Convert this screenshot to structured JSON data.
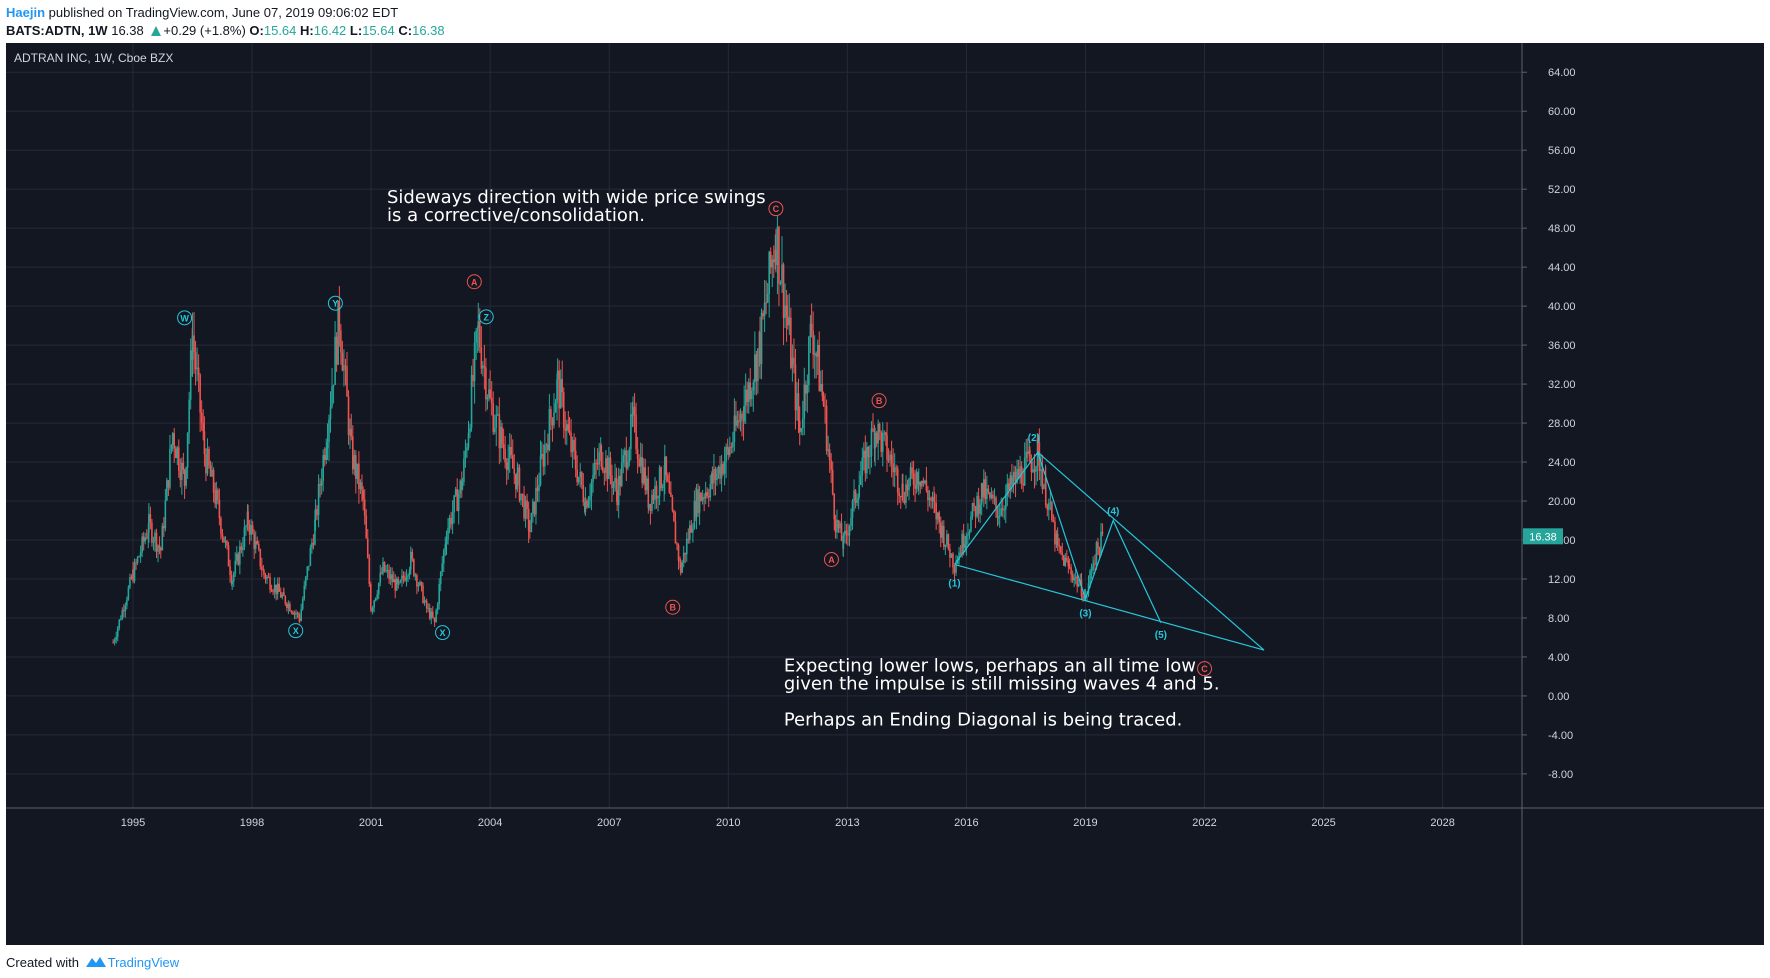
{
  "header": {
    "author": "Haejin",
    "published": " published on TradingView.com, June 07, 2019 09:06:02 EDT",
    "symbol": "BATS:ADTN, 1W",
    "price": "16.38",
    "change": "+0.29 (+1.8%)",
    "o_label": "O:",
    "o_value": "15.64",
    "h_label": "H:",
    "h_value": "16.42",
    "l_label": "L:",
    "l_value": "15.64",
    "c_label": "C:",
    "c_value": "16.38"
  },
  "footer": {
    "created": "Created with",
    "brand": "TradingView"
  },
  "colors": {
    "background": "#131722",
    "grid": "#252a38",
    "axis_text": "#d1d4dc",
    "candle_up": "#26a69a",
    "candle_down": "#ef5350",
    "wave_cyan": "#26c6da",
    "wave_red": "#ef5350",
    "price_label_bg": "#26a69a"
  },
  "chart_data": {
    "type": "candlestick",
    "title": "ADTRAN INC, 1W, Cboe BZX",
    "x_range": [
      1991.8,
      2030.0
    ],
    "y_range": [
      -11.5,
      67.0
    ],
    "x_ticks": [
      "1995",
      "1998",
      "2001",
      "2004",
      "2007",
      "2010",
      "2013",
      "2016",
      "2019",
      "2022",
      "2025",
      "2028"
    ],
    "x_tick_values": [
      1995,
      1998,
      2001,
      2004,
      2007,
      2010,
      2013,
      2016,
      2019,
      2022,
      2025,
      2028
    ],
    "y_ticks": [
      "64.00",
      "60.00",
      "56.00",
      "52.00",
      "48.00",
      "44.00",
      "40.00",
      "36.00",
      "32.00",
      "28.00",
      "24.00",
      "20.00",
      "16.00",
      "12.00",
      "8.00",
      "4.00",
      "0.00",
      "-4.00",
      "-8.00"
    ],
    "y_tick_values": [
      64,
      60,
      56,
      52,
      48,
      44,
      40,
      36,
      32,
      28,
      24,
      20,
      16,
      12,
      8,
      4,
      0,
      -4,
      -8
    ],
    "last_price": "16.38",
    "last_price_value": 16.38,
    "price_path": [
      [
        1994.5,
        5.5
      ],
      [
        1995.0,
        12.5
      ],
      [
        1995.4,
        17.5
      ],
      [
        1995.7,
        15.0
      ],
      [
        1996.0,
        27.0
      ],
      [
        1996.3,
        22.0
      ],
      [
        1996.5,
        37.0
      ],
      [
        1996.8,
        25.0
      ],
      [
        1997.1,
        20.0
      ],
      [
        1997.5,
        12.0
      ],
      [
        1997.9,
        18.0
      ],
      [
        1998.3,
        12.5
      ],
      [
        1998.8,
        10.0
      ],
      [
        1999.2,
        8.0
      ],
      [
        1999.6,
        18.0
      ],
      [
        1999.9,
        28.0
      ],
      [
        2000.2,
        39.0
      ],
      [
        2000.5,
        25.0
      ],
      [
        2000.8,
        20.0
      ],
      [
        2001.0,
        9.0
      ],
      [
        2001.3,
        13.0
      ],
      [
        2001.7,
        11.0
      ],
      [
        2002.0,
        14.0
      ],
      [
        2002.4,
        9.0
      ],
      [
        2002.6,
        7.5
      ],
      [
        2002.9,
        17.0
      ],
      [
        2003.3,
        22.0
      ],
      [
        2003.7,
        37.5
      ],
      [
        2004.0,
        30.0
      ],
      [
        2004.3,
        26.0
      ],
      [
        2004.7,
        22.0
      ],
      [
        2005.0,
        17.0
      ],
      [
        2005.3,
        24.0
      ],
      [
        2005.7,
        32.0
      ],
      [
        2006.0,
        26.0
      ],
      [
        2006.4,
        20.0
      ],
      [
        2006.8,
        25.0
      ],
      [
        2007.2,
        21.0
      ],
      [
        2007.6,
        28.0
      ],
      [
        2008.0,
        20.0
      ],
      [
        2008.4,
        23.0
      ],
      [
        2008.8,
        13.0
      ],
      [
        2009.2,
        20.0
      ],
      [
        2009.6,
        22.0
      ],
      [
        2010.0,
        25.0
      ],
      [
        2010.4,
        30.0
      ],
      [
        2010.8,
        36.0
      ],
      [
        2011.2,
        47.5
      ],
      [
        2011.5,
        38.0
      ],
      [
        2011.8,
        27.0
      ],
      [
        2012.1,
        38.0
      ],
      [
        2012.4,
        30.0
      ],
      [
        2012.7,
        18.0
      ],
      [
        2012.9,
        15.5
      ],
      [
        2013.3,
        22.0
      ],
      [
        2013.7,
        27.5
      ],
      [
        2014.0,
        25.0
      ],
      [
        2014.4,
        21.0
      ],
      [
        2014.8,
        23.0
      ],
      [
        2015.2,
        19.0
      ],
      [
        2015.7,
        13.5
      ],
      [
        2016.0,
        17.0
      ],
      [
        2016.4,
        21.0
      ],
      [
        2016.8,
        19.0
      ],
      [
        2017.2,
        22.0
      ],
      [
        2017.6,
        24.0
      ],
      [
        2017.8,
        25.0
      ],
      [
        2018.0,
        21.0
      ],
      [
        2018.3,
        15.0
      ],
      [
        2018.6,
        13.0
      ],
      [
        2018.9,
        11.0
      ],
      [
        2019.0,
        10.0
      ],
      [
        2019.2,
        14.0
      ],
      [
        2019.45,
        16.38
      ]
    ],
    "wave_labels": [
      {
        "text": "W",
        "x": 1996.3,
        "y": 38.8,
        "color": "cyan",
        "circled": true
      },
      {
        "text": "X",
        "x": 1999.1,
        "y": 6.7,
        "color": "cyan",
        "circled": true
      },
      {
        "text": "Y",
        "x": 2000.1,
        "y": 40.3,
        "color": "cyan",
        "circled": true
      },
      {
        "text": "X",
        "x": 2002.8,
        "y": 6.5,
        "color": "cyan",
        "circled": true
      },
      {
        "text": "A",
        "x": 2003.6,
        "y": 42.5,
        "color": "red",
        "circled": true
      },
      {
        "text": "Z",
        "x": 2003.9,
        "y": 38.9,
        "color": "cyan",
        "circled": true
      },
      {
        "text": "B",
        "x": 2008.6,
        "y": 9.1,
        "color": "red",
        "circled": true
      },
      {
        "text": "C",
        "x": 2011.2,
        "y": 50.0,
        "color": "red",
        "circled": true
      },
      {
        "text": "A",
        "x": 2012.6,
        "y": 14.0,
        "color": "red",
        "circled": true
      },
      {
        "text": "B",
        "x": 2013.8,
        "y": 30.3,
        "color": "red",
        "circled": true
      },
      {
        "text": "(1)",
        "x": 2015.7,
        "y": 11.6,
        "color": "cyan",
        "circled": false
      },
      {
        "text": "(2)",
        "x": 2017.7,
        "y": 26.5,
        "color": "cyan",
        "circled": false
      },
      {
        "text": "(3)",
        "x": 2019.0,
        "y": 8.5,
        "color": "cyan",
        "circled": false
      },
      {
        "text": "(4)",
        "x": 2019.7,
        "y": 19.0,
        "color": "cyan",
        "circled": false
      },
      {
        "text": "(5)",
        "x": 2020.9,
        "y": 6.3,
        "color": "cyan",
        "circled": false
      },
      {
        "text": "C",
        "x": 2022.0,
        "y": 2.8,
        "color": "red",
        "circled": true
      }
    ],
    "wave_lines": [
      [
        [
          2015.7,
          13.5
        ],
        [
          2017.8,
          25.0
        ],
        [
          2019.0,
          10.0
        ],
        [
          2019.7,
          18.0
        ],
        [
          2020.9,
          7.5
        ]
      ],
      [
        [
          2015.7,
          13.5
        ],
        [
          2023.5,
          4.7
        ]
      ],
      [
        [
          2017.8,
          25.0
        ],
        [
          2023.5,
          4.7
        ]
      ]
    ],
    "annotations": [
      {
        "lines": [
          "Sideways direction with wide price swings",
          "is a corrective/consolidation."
        ],
        "x": 2001.4,
        "y": 50.6
      },
      {
        "lines": [
          "Expecting lower lows, perhaps an all time low",
          "given the impulse is still missing waves 4 and 5.",
          "",
          "Perhaps an Ending Diagonal is being traced."
        ],
        "x": 2011.4,
        "y": 2.5
      }
    ]
  }
}
